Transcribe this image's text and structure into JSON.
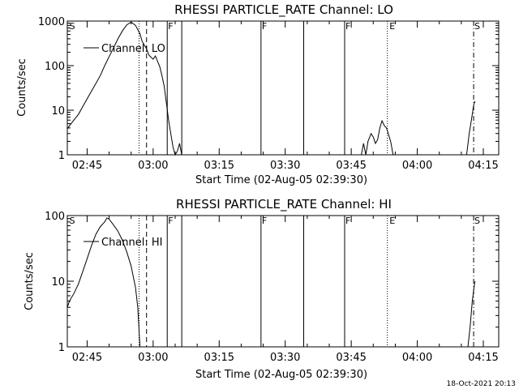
{
  "footer_timestamp": "18-Oct-2021 20:13",
  "chart_data": [
    {
      "type": "line",
      "title": "RHESSI PARTICLE_RATE Channel: LO",
      "xlabel": "Start Time (02-Aug-05 02:39:30)",
      "ylabel": "Counts/sec",
      "yscale": "log",
      "ylim": [
        1,
        1000
      ],
      "yticks": [
        "1",
        "10",
        "100",
        "1000"
      ],
      "xlim": [
        40.5,
        138.5
      ],
      "xticks": [
        {
          "v": 45,
          "label": "02:45"
        },
        {
          "v": 60,
          "label": "03:00"
        },
        {
          "v": 75,
          "label": "03:15"
        },
        {
          "v": 90,
          "label": "03:30"
        },
        {
          "v": 105,
          "label": "03:45"
        },
        {
          "v": 120,
          "label": "04:00"
        },
        {
          "v": 135,
          "label": "04:15"
        }
      ],
      "legend": "Channel: LO",
      "legend_position": "top-left",
      "markers": [
        {
          "t": 40.8,
          "style": "none",
          "label": "S"
        },
        {
          "t": 56.8,
          "style": "dotted",
          "label": ""
        },
        {
          "t": 58.5,
          "style": "dashed",
          "label": ""
        },
        {
          "t": 63.2,
          "style": "solid",
          "label": "F"
        },
        {
          "t": 66.5,
          "style": "solid",
          "label": ""
        },
        {
          "t": 84.5,
          "style": "solid",
          "label": "F"
        },
        {
          "t": 94.2,
          "style": "solid",
          "label": ""
        },
        {
          "t": 103.5,
          "style": "solid",
          "label": "F"
        },
        {
          "t": 113.2,
          "style": "dotted",
          "label": ""
        },
        {
          "t": 113.5,
          "style": "none",
          "label": "E"
        },
        {
          "t": 132.8,
          "style": "dashdot",
          "label": "S"
        }
      ],
      "series": [
        {
          "name": "Channel: LO",
          "segments": [
            [
              [
                40.5,
                3.8
              ],
              [
                41,
                4.5
              ],
              [
                42,
                6
              ],
              [
                43,
                8
              ],
              [
                44,
                12
              ],
              [
                45,
                18
              ],
              [
                46,
                27
              ],
              [
                47,
                40
              ],
              [
                48,
                60
              ],
              [
                49,
                100
              ],
              [
                50,
                160
              ],
              [
                51,
                250
              ],
              [
                52,
                400
              ],
              [
                53,
                600
              ],
              [
                54,
                820
              ],
              [
                55,
                950
              ],
              [
                56,
                800
              ],
              [
                57,
                520
              ],
              [
                57.5,
                350
              ],
              [
                58,
                290
              ],
              [
                58.5,
                240
              ],
              [
                59,
                175
              ],
              [
                59.5,
                155
              ],
              [
                60,
                140
              ],
              [
                60.5,
                165
              ],
              [
                61,
                125
              ],
              [
                61.5,
                95
              ],
              [
                62,
                60
              ],
              [
                62.5,
                35
              ],
              [
                63,
                15
              ],
              [
                63.5,
                6
              ],
              [
                64,
                3
              ],
              [
                64.5,
                1.5
              ],
              [
                65,
                1
              ],
              [
                65.5,
                1.2
              ],
              [
                66,
                1.8
              ],
              [
                66.5,
                1
              ]
            ],
            [
              [
                107.3,
                1
              ],
              [
                107.8,
                1.8
              ],
              [
                108.3,
                1
              ],
              [
                108.8,
                2
              ],
              [
                109.5,
                3
              ],
              [
                110,
                2.5
              ],
              [
                110.5,
                1.8
              ],
              [
                111,
                2.2
              ],
              [
                111.5,
                4
              ],
              [
                112,
                5.8
              ],
              [
                112.5,
                4.5
              ],
              [
                113,
                4
              ],
              [
                113.5,
                2.8
              ],
              [
                114,
                1.9
              ],
              [
                114.5,
                1
              ]
            ],
            [
              [
                131.2,
                1
              ],
              [
                131.8,
                3
              ],
              [
                132.3,
                6
              ],
              [
                132.8,
                13
              ],
              [
                133.1,
                16
              ]
            ]
          ]
        }
      ]
    },
    {
      "type": "line",
      "title": "RHESSI PARTICLE_RATE Channel: HI",
      "xlabel": "Start Time (02-Aug-05 02:39:30)",
      "ylabel": "Counts/sec",
      "yscale": "log",
      "ylim": [
        1,
        100
      ],
      "yticks": [
        "1",
        "10",
        "100"
      ],
      "xlim": [
        40.5,
        138.5
      ],
      "xticks": [
        {
          "v": 45,
          "label": "02:45"
        },
        {
          "v": 60,
          "label": "03:00"
        },
        {
          "v": 75,
          "label": "03:15"
        },
        {
          "v": 90,
          "label": "03:30"
        },
        {
          "v": 105,
          "label": "03:45"
        },
        {
          "v": 120,
          "label": "04:00"
        },
        {
          "v": 135,
          "label": "04:15"
        }
      ],
      "legend": "Channel: HI",
      "legend_position": "top-left",
      "markers": [
        {
          "t": 40.8,
          "style": "none",
          "label": "S"
        },
        {
          "t": 56.8,
          "style": "dotted",
          "label": ""
        },
        {
          "t": 58.5,
          "style": "dashed",
          "label": ""
        },
        {
          "t": 63.2,
          "style": "solid",
          "label": "F"
        },
        {
          "t": 66.5,
          "style": "solid",
          "label": ""
        },
        {
          "t": 84.5,
          "style": "solid",
          "label": "F"
        },
        {
          "t": 94.2,
          "style": "solid",
          "label": ""
        },
        {
          "t": 103.5,
          "style": "solid",
          "label": "F"
        },
        {
          "t": 113.2,
          "style": "dotted",
          "label": ""
        },
        {
          "t": 113.5,
          "style": "none",
          "label": "E"
        },
        {
          "t": 132.8,
          "style": "dashdot",
          "label": "S"
        }
      ],
      "series": [
        {
          "name": "Channel: HI",
          "segments": [
            [
              [
                40.5,
                4
              ],
              [
                41,
                5
              ],
              [
                42,
                6.5
              ],
              [
                43,
                9
              ],
              [
                44,
                14
              ],
              [
                45,
                22
              ],
              [
                46,
                35
              ],
              [
                47,
                52
              ],
              [
                48,
                68
              ],
              [
                49,
                80
              ],
              [
                49.5,
                92
              ],
              [
                50,
                88
              ],
              [
                51,
                72
              ],
              [
                52,
                58
              ],
              [
                53,
                42
              ],
              [
                54,
                28
              ],
              [
                55,
                17
              ],
              [
                56,
                8
              ],
              [
                56.5,
                4
              ],
              [
                57,
                1
              ]
            ],
            [
              [
                131.5,
                1
              ],
              [
                132,
                2
              ],
              [
                132.5,
                5
              ],
              [
                133,
                9
              ],
              [
                133.1,
                10
              ]
            ]
          ]
        }
      ]
    }
  ]
}
